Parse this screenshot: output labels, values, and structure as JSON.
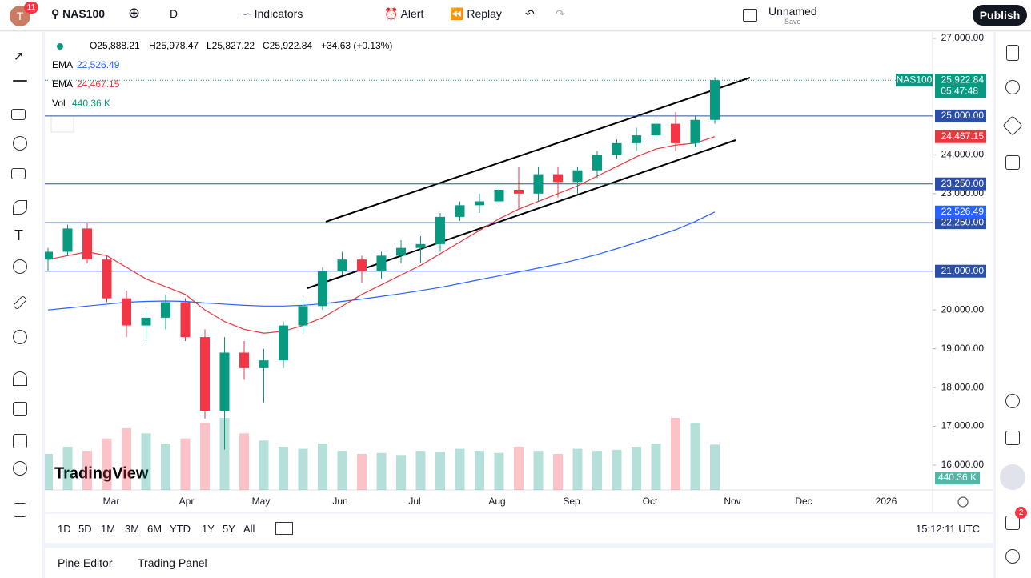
{
  "toolbar": {
    "badge": "11",
    "symbol": "NAS100",
    "interval": "D",
    "indicators": "Indicators",
    "alert": "Alert",
    "replay": "Replay",
    "layout_name": "Unnamed",
    "save": "Save",
    "publish": "Publish"
  },
  "legend": {
    "open": "O25,888.21",
    "high": "H25,978.47",
    "low": "L25,827.22",
    "close": "C25,922.84",
    "change": "+34.63 (+0.13%)",
    "ema1": "EMA",
    "ema2": "EMA",
    "vol": "Vol"
  },
  "logo": "TradingView",
  "bottom": {
    "ranges": [
      "1D",
      "5D",
      "1M",
      "3M",
      "6M",
      "YTD",
      "1Y",
      "5Y",
      "All"
    ],
    "time": "15:12:11 UTC",
    "tabs": [
      "Pine Editor",
      "Trading Panel"
    ]
  },
  "right_badge": "2",
  "chart_data": {
    "type": "candlestick",
    "months": [
      "Mar",
      "Apr",
      "May",
      "Jun",
      "Jul",
      "Aug",
      "Sep",
      "Oct",
      "Nov",
      "Dec",
      "2026"
    ],
    "candles": [
      [
        21300,
        21600,
        21000,
        21500
      ],
      [
        21500,
        22200,
        21400,
        22100
      ],
      [
        22100,
        22250,
        21200,
        21300
      ],
      [
        21300,
        21400,
        20200,
        20300
      ],
      [
        20300,
        20500,
        19300,
        19600
      ],
      [
        19600,
        20000,
        19200,
        19800
      ],
      [
        19800,
        20400,
        19500,
        20200
      ],
      [
        20200,
        20300,
        19200,
        19300
      ],
      [
        19300,
        19500,
        17200,
        17400
      ],
      [
        17400,
        19300,
        16400,
        18900
      ],
      [
        18900,
        19200,
        18200,
        18500
      ],
      [
        18500,
        19000,
        17600,
        18700
      ],
      [
        18700,
        19700,
        18500,
        19600
      ],
      [
        19600,
        20300,
        19400,
        20100
      ],
      [
        20100,
        21100,
        20000,
        21000
      ],
      [
        21000,
        21500,
        20900,
        21300
      ],
      [
        21300,
        21400,
        20700,
        21000
      ],
      [
        21000,
        21500,
        20800,
        21400
      ],
      [
        21400,
        21800,
        21200,
        21600
      ],
      [
        21600,
        21900,
        21200,
        21700
      ],
      [
        21700,
        22500,
        21500,
        22400
      ],
      [
        22400,
        22800,
        22300,
        22700
      ],
      [
        22700,
        23000,
        22500,
        22800
      ],
      [
        22800,
        23200,
        22700,
        23100
      ],
      [
        23100,
        23700,
        22600,
        23000
      ],
      [
        23000,
        23700,
        22800,
        23500
      ],
      [
        23500,
        23700,
        22900,
        23300
      ],
      [
        23300,
        23700,
        23000,
        23600
      ],
      [
        23600,
        24100,
        23400,
        24000
      ],
      [
        24000,
        24400,
        23900,
        24300
      ],
      [
        24300,
        24700,
        24100,
        24500
      ],
      [
        24500,
        24900,
        24400,
        24800
      ],
      [
        24800,
        25100,
        24100,
        24300
      ],
      [
        24300,
        25000,
        24200,
        24900
      ],
      [
        24900,
        26000,
        24800,
        25922.84
      ]
    ],
    "up_color": "#089981",
    "down_color": "#f23645",
    "volume": [
      350,
      420,
      380,
      500,
      600,
      550,
      450,
      500,
      650,
      700,
      550,
      480,
      420,
      400,
      450,
      380,
      350,
      360,
      340,
      380,
      370,
      400,
      380,
      360,
      420,
      380,
      350,
      400,
      380,
      390,
      420,
      450,
      700,
      650,
      440.36
    ],
    "volume_label": "440.36 K",
    "series": [
      {
        "name": "EMA",
        "color": "#2962ff",
        "last_label": "22,526.49",
        "values": [
          20000,
          20050,
          20100,
          20150,
          20200,
          20220,
          20230,
          20220,
          20180,
          20150,
          20120,
          20100,
          20100,
          20120,
          20160,
          20220,
          20280,
          20350,
          20420,
          20500,
          20580,
          20680,
          20780,
          20880,
          20980,
          21080,
          21180,
          21300,
          21430,
          21580,
          21740,
          21900,
          22070,
          22280,
          22526.49
        ]
      },
      {
        "name": "EMA",
        "color": "#e5393f",
        "last_label": "24,467.15",
        "values": [
          21300,
          21400,
          21500,
          21400,
          21100,
          20800,
          20600,
          20400,
          20000,
          19700,
          19500,
          19400,
          19450,
          19600,
          19800,
          20100,
          20400,
          20650,
          20900,
          21150,
          21450,
          21750,
          22050,
          22350,
          22600,
          22800,
          23000,
          23200,
          23450,
          23700,
          23950,
          24150,
          24250,
          24300,
          24467.15
        ]
      }
    ],
    "ylim": [
      16000,
      27000
    ],
    "yticks": [
      {
        "value": 27000,
        "label": "27,000.00"
      },
      {
        "value": 24000,
        "label": "24,000.00"
      },
      {
        "value": 23000,
        "label": "23,000.00"
      },
      {
        "value": 20000,
        "label": "20,000.00"
      },
      {
        "value": 19000,
        "label": "19,000.00"
      },
      {
        "value": 18000,
        "label": "18,000.00"
      },
      {
        "value": 17000,
        "label": "17,000.00"
      },
      {
        "value": 16000,
        "label": "16,000.00"
      }
    ],
    "levels": [
      {
        "value": 25000,
        "label": "25,000.00"
      },
      {
        "value": 23250,
        "label": "23,250.00"
      },
      {
        "value": 22250,
        "label": "22,250.00"
      },
      {
        "value": 21000,
        "label": "21,000.00"
      }
    ],
    "last_price": {
      "value": 25922.84,
      "label": "25,922.84"
    },
    "symbol_tag": "NAS100",
    "countdown": "05:47:48"
  }
}
